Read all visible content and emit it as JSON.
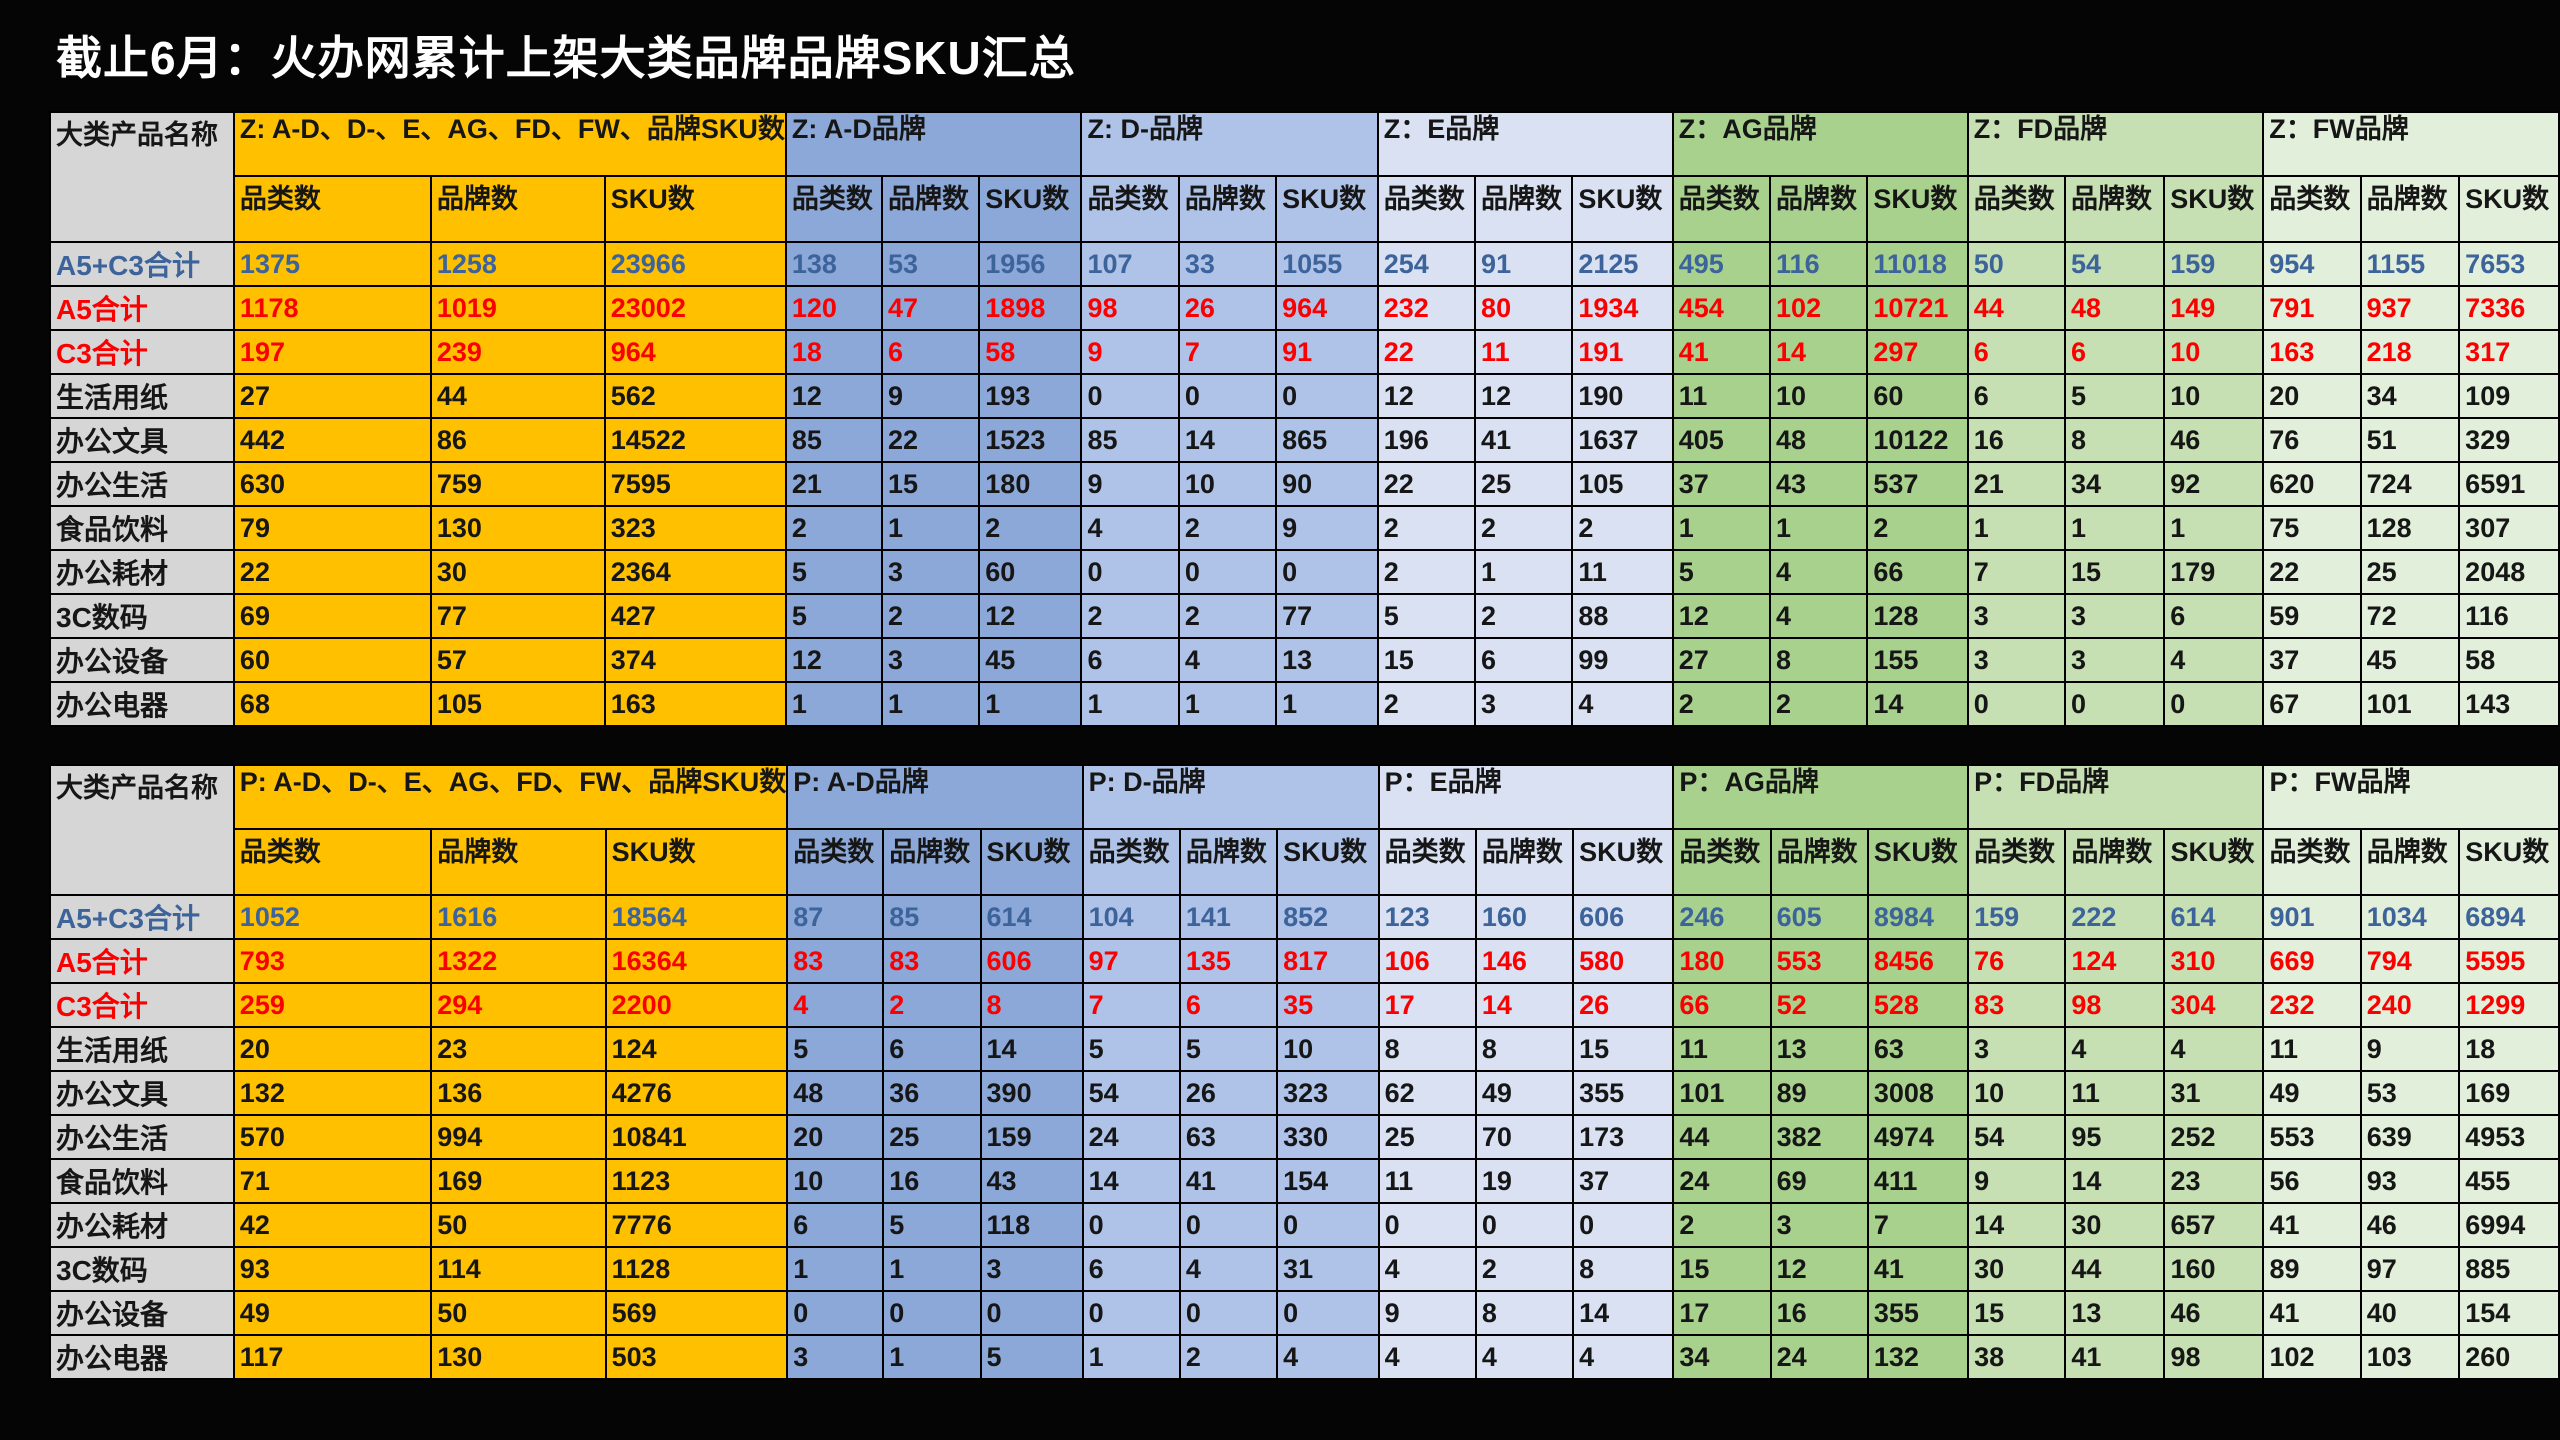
{
  "title": "截止6月：火办网累计上架大类品牌品牌SKU汇总",
  "colors": {
    "background": "#050505",
    "title_text": "#FFFFFF",
    "label_gray": "#D6D6D6",
    "orange": "#FFC000",
    "ad": "#8CA8D8",
    "d": "#AFC3E8",
    "e": "#D9E1F2",
    "ag": "#A9D18E",
    "fd": "#C6E0B4",
    "fw": "#E2EFDA",
    "text_black": "#161616",
    "text_blue": "#3D639B",
    "text_red": "#FB0000",
    "border_black": "#000000"
  },
  "tables": [
    {
      "name": "Z",
      "corner_label": "大类产品名称",
      "groups": [
        {
          "label": "Z: A-D、D-、E、AG、FD、FW、品牌SKU数",
          "color": "orange"
        },
        {
          "label": "Z: A-D品牌",
          "color": "ad"
        },
        {
          "label": "Z: D-品牌",
          "color": "d"
        },
        {
          "label": "Z：E品牌",
          "color": "e"
        },
        {
          "label": "Z：AG品牌",
          "color": "ag"
        },
        {
          "label": "Z：FD品牌",
          "color": "fd"
        },
        {
          "label": "Z：FW品牌",
          "color": "fw"
        }
      ],
      "subheaders": [
        "品类数",
        "品牌数",
        "SKU数"
      ],
      "rows": [
        {
          "label": "A5+C3合计",
          "style": "blue",
          "values": [
            [
              1375,
              1258,
              23966
            ],
            [
              138,
              53,
              1956
            ],
            [
              107,
              33,
              1055
            ],
            [
              254,
              91,
              2125
            ],
            [
              495,
              116,
              11018
            ],
            [
              50,
              54,
              159
            ],
            [
              954,
              1155,
              7653
            ]
          ]
        },
        {
          "label": "A5合计",
          "style": "red",
          "values": [
            [
              1178,
              1019,
              23002
            ],
            [
              120,
              47,
              1898
            ],
            [
              98,
              26,
              964
            ],
            [
              232,
              80,
              1934
            ],
            [
              454,
              102,
              10721
            ],
            [
              44,
              48,
              149
            ],
            [
              791,
              937,
              7336
            ]
          ]
        },
        {
          "label": "C3合计",
          "style": "red",
          "values": [
            [
              197,
              239,
              964
            ],
            [
              18,
              6,
              58
            ],
            [
              9,
              7,
              91
            ],
            [
              22,
              11,
              191
            ],
            [
              41,
              14,
              297
            ],
            [
              6,
              6,
              10
            ],
            [
              163,
              218,
              317
            ]
          ]
        },
        {
          "label": "生活用纸",
          "style": "normal",
          "values": [
            [
              27,
              44,
              562
            ],
            [
              12,
              9,
              193
            ],
            [
              0,
              0,
              0
            ],
            [
              12,
              12,
              190
            ],
            [
              11,
              10,
              60
            ],
            [
              6,
              5,
              10
            ],
            [
              20,
              34,
              109
            ]
          ]
        },
        {
          "label": "办公文具",
          "style": "normal",
          "values": [
            [
              442,
              86,
              14522
            ],
            [
              85,
              22,
              1523
            ],
            [
              85,
              14,
              865
            ],
            [
              196,
              41,
              1637
            ],
            [
              405,
              48,
              10122
            ],
            [
              16,
              8,
              46
            ],
            [
              76,
              51,
              329
            ]
          ]
        },
        {
          "label": "办公生活",
          "style": "normal",
          "values": [
            [
              630,
              759,
              7595
            ],
            [
              21,
              15,
              180
            ],
            [
              9,
              10,
              90
            ],
            [
              22,
              25,
              105
            ],
            [
              37,
              43,
              537
            ],
            [
              21,
              34,
              92
            ],
            [
              620,
              724,
              6591
            ]
          ]
        },
        {
          "label": "食品饮料",
          "style": "normal",
          "values": [
            [
              79,
              130,
              323
            ],
            [
              2,
              1,
              2
            ],
            [
              4,
              2,
              9
            ],
            [
              2,
              2,
              2
            ],
            [
              1,
              1,
              2
            ],
            [
              1,
              1,
              1
            ],
            [
              75,
              128,
              307
            ]
          ]
        },
        {
          "label": "办公耗材",
          "style": "normal",
          "values": [
            [
              22,
              30,
              2364
            ],
            [
              5,
              3,
              60
            ],
            [
              0,
              0,
              0
            ],
            [
              2,
              1,
              11
            ],
            [
              5,
              4,
              66
            ],
            [
              7,
              15,
              179
            ],
            [
              22,
              25,
              2048
            ]
          ]
        },
        {
          "label": "3C数码",
          "style": "normal",
          "values": [
            [
              69,
              77,
              427
            ],
            [
              5,
              2,
              12
            ],
            [
              2,
              2,
              77
            ],
            [
              5,
              2,
              88
            ],
            [
              12,
              4,
              128
            ],
            [
              3,
              3,
              6
            ],
            [
              59,
              72,
              116
            ]
          ]
        },
        {
          "label": "办公设备",
          "style": "normal",
          "values": [
            [
              60,
              57,
              374
            ],
            [
              12,
              3,
              45
            ],
            [
              6,
              4,
              13
            ],
            [
              15,
              6,
              99
            ],
            [
              27,
              8,
              155
            ],
            [
              3,
              3,
              4
            ],
            [
              37,
              45,
              58
            ]
          ]
        },
        {
          "label": "办公电器",
          "style": "normal",
          "values": [
            [
              68,
              105,
              163
            ],
            [
              1,
              1,
              1
            ],
            [
              1,
              1,
              1
            ],
            [
              2,
              3,
              4
            ],
            [
              2,
              2,
              14
            ],
            [
              0,
              0,
              0
            ],
            [
              67,
              101,
              143
            ]
          ]
        }
      ]
    },
    {
      "name": "P",
      "corner_label": "大类产品名称",
      "groups": [
        {
          "label": "P: A-D、D-、E、AG、FD、FW、品牌SKU数",
          "color": "orange"
        },
        {
          "label": "P: A-D品牌",
          "color": "ad"
        },
        {
          "label": "P: D-品牌",
          "color": "d"
        },
        {
          "label": "P：E品牌",
          "color": "e"
        },
        {
          "label": "P：AG品牌",
          "color": "ag"
        },
        {
          "label": "P：FD品牌",
          "color": "fd"
        },
        {
          "label": "P：FW品牌",
          "color": "fw"
        }
      ],
      "subheaders": [
        "品类数",
        "品牌数",
        "SKU数"
      ],
      "rows": [
        {
          "label": "A5+C3合计",
          "style": "blue",
          "values": [
            [
              1052,
              1616,
              18564
            ],
            [
              87,
              85,
              614
            ],
            [
              104,
              141,
              852
            ],
            [
              123,
              160,
              606
            ],
            [
              246,
              605,
              8984
            ],
            [
              159,
              222,
              614
            ],
            [
              901,
              1034,
              6894
            ]
          ]
        },
        {
          "label": "A5合计",
          "style": "red",
          "values": [
            [
              793,
              1322,
              16364
            ],
            [
              83,
              83,
              606
            ],
            [
              97,
              135,
              817
            ],
            [
              106,
              146,
              580
            ],
            [
              180,
              553,
              8456
            ],
            [
              76,
              124,
              310
            ],
            [
              669,
              794,
              5595
            ]
          ]
        },
        {
          "label": "C3合计",
          "style": "red",
          "values": [
            [
              259,
              294,
              2200
            ],
            [
              4,
              2,
              8
            ],
            [
              7,
              6,
              35
            ],
            [
              17,
              14,
              26
            ],
            [
              66,
              52,
              528
            ],
            [
              83,
              98,
              304
            ],
            [
              232,
              240,
              1299
            ]
          ]
        },
        {
          "label": "生活用纸",
          "style": "normal",
          "values": [
            [
              20,
              23,
              124
            ],
            [
              5,
              6,
              14
            ],
            [
              5,
              5,
              10
            ],
            [
              8,
              8,
              15
            ],
            [
              11,
              13,
              63
            ],
            [
              3,
              4,
              4
            ],
            [
              11,
              9,
              18
            ]
          ]
        },
        {
          "label": "办公文具",
          "style": "normal",
          "values": [
            [
              132,
              136,
              4276
            ],
            [
              48,
              36,
              390
            ],
            [
              54,
              26,
              323
            ],
            [
              62,
              49,
              355
            ],
            [
              101,
              89,
              3008
            ],
            [
              10,
              11,
              31
            ],
            [
              49,
              53,
              169
            ]
          ]
        },
        {
          "label": "办公生活",
          "style": "normal",
          "values": [
            [
              570,
              994,
              10841
            ],
            [
              20,
              25,
              159
            ],
            [
              24,
              63,
              330
            ],
            [
              25,
              70,
              173
            ],
            [
              44,
              382,
              4974
            ],
            [
              54,
              95,
              252
            ],
            [
              553,
              639,
              4953
            ]
          ]
        },
        {
          "label": "食品饮料",
          "style": "normal",
          "values": [
            [
              71,
              169,
              1123
            ],
            [
              10,
              16,
              43
            ],
            [
              14,
              41,
              154
            ],
            [
              11,
              19,
              37
            ],
            [
              24,
              69,
              411
            ],
            [
              9,
              14,
              23
            ],
            [
              56,
              93,
              455
            ]
          ]
        },
        {
          "label": "办公耗材",
          "style": "normal",
          "values": [
            [
              42,
              50,
              7776
            ],
            [
              6,
              5,
              118
            ],
            [
              0,
              0,
              0
            ],
            [
              0,
              0,
              0
            ],
            [
              2,
              3,
              7
            ],
            [
              14,
              30,
              657
            ],
            [
              41,
              46,
              6994
            ]
          ]
        },
        {
          "label": "3C数码",
          "style": "normal",
          "values": [
            [
              93,
              114,
              1128
            ],
            [
              1,
              1,
              3
            ],
            [
              6,
              4,
              31
            ],
            [
              4,
              2,
              8
            ],
            [
              15,
              12,
              41
            ],
            [
              30,
              44,
              160
            ],
            [
              89,
              97,
              885
            ]
          ]
        },
        {
          "label": "办公设备",
          "style": "normal",
          "values": [
            [
              49,
              50,
              569
            ],
            [
              0,
              0,
              0
            ],
            [
              0,
              0,
              0
            ],
            [
              9,
              8,
              14
            ],
            [
              17,
              16,
              355
            ],
            [
              15,
              13,
              46
            ],
            [
              41,
              40,
              154
            ]
          ]
        },
        {
          "label": "办公电器",
          "style": "normal",
          "values": [
            [
              117,
              130,
              503
            ],
            [
              3,
              1,
              5
            ],
            [
              1,
              2,
              4
            ],
            [
              4,
              4,
              4
            ],
            [
              34,
              24,
              132
            ],
            [
              38,
              41,
              98
            ],
            [
              102,
              103,
              260
            ]
          ]
        }
      ]
    }
  ]
}
